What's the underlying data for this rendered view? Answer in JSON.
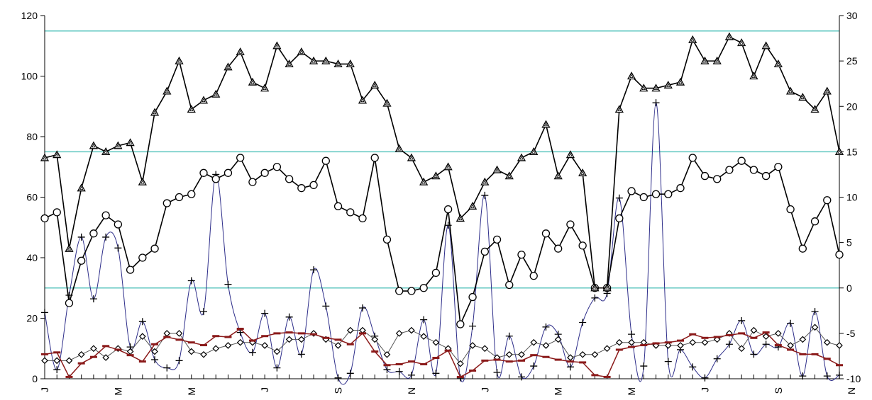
{
  "chart_data": {
    "type": "line",
    "title": "",
    "xlabel": "",
    "ylabel": "",
    "n_points": 66,
    "x_tick_labels": [
      "J",
      "M",
      "M",
      "J",
      "S",
      "N",
      "J",
      "M",
      "M",
      "J",
      "S",
      "N"
    ],
    "left_axis": {
      "min": 0,
      "max": 120,
      "ticks": [
        0,
        20,
        40,
        60,
        80,
        100,
        120
      ]
    },
    "right_axis": {
      "min": -10,
      "max": 30,
      "ticks": [
        -10,
        -5,
        0,
        5,
        10,
        15,
        20,
        25,
        30
      ]
    },
    "reference_lines_right": [
      0,
      15,
      28.3
    ],
    "colors": {
      "reference": "#5fc7c0",
      "black": "#000000",
      "navy": "#2e2e8a",
      "maroon": "#8b1a1a"
    },
    "series": [
      {
        "axis": "left",
        "marker": "triangle",
        "color": "#000000",
        "values": [
          73,
          74,
          43,
          63,
          77,
          75,
          77,
          78,
          65,
          88,
          95,
          105,
          89,
          92,
          94,
          103,
          108,
          98,
          96,
          110,
          104,
          108,
          105,
          105,
          104,
          104,
          92,
          97,
          91,
          76,
          73,
          65,
          67,
          70,
          53,
          57,
          65,
          69,
          67,
          73,
          75,
          84,
          67,
          74,
          68,
          30,
          30,
          89,
          100,
          96,
          96,
          97,
          98,
          112,
          105,
          105,
          113,
          111,
          100,
          110,
          104,
          95,
          93,
          89,
          95,
          75
        ]
      },
      {
        "axis": "left",
        "marker": "circle",
        "color": "#000000",
        "values": [
          53,
          55,
          25,
          39,
          48,
          54,
          51,
          36,
          40,
          43,
          58,
          60,
          61,
          68,
          66,
          68,
          73,
          65,
          68,
          70,
          66,
          63,
          64,
          72,
          57,
          55,
          53,
          73,
          46,
          29,
          29,
          30,
          35,
          56,
          18,
          27,
          42,
          46,
          31,
          41,
          34,
          48,
          43,
          51,
          44,
          30,
          30,
          53,
          62,
          60,
          61,
          61,
          63,
          73,
          67,
          66,
          69,
          72,
          69,
          67,
          70,
          56,
          43,
          52,
          59,
          41
        ]
      },
      {
        "axis": "left",
        "marker": "diamond",
        "color": "#000000",
        "values": [
          6,
          6,
          6,
          8,
          10,
          7,
          10,
          9,
          14,
          9,
          15,
          15,
          9,
          8,
          10,
          11,
          12,
          12,
          11,
          9,
          13,
          13,
          15,
          13,
          11,
          16,
          16,
          13,
          8,
          15,
          16,
          14,
          12,
          10,
          5,
          11,
          10,
          7,
          8,
          8,
          12,
          11,
          13,
          7,
          8,
          8,
          10,
          12,
          12,
          12,
          11,
          11,
          11,
          12,
          12,
          13,
          15,
          10,
          16,
          14,
          15,
          11,
          13,
          17,
          12,
          11
        ]
      },
      {
        "axis": "right",
        "marker": "plus",
        "color": "#2e2e8a",
        "values": [
          -2.7,
          -9,
          -0.8,
          5.6,
          -1.2,
          5.6,
          4.4,
          -6.5,
          -3.7,
          -7.9,
          -8.8,
          -8,
          0.8,
          -2.6,
          12.5,
          0.4,
          -4.9,
          -7.1,
          -2.8,
          -8.8,
          -3.2,
          -7.3,
          2,
          -2,
          -9.9,
          -9.4,
          -2.2,
          -5.3,
          -9,
          -9.2,
          -9.6,
          -3.5,
          -9.4,
          6.9,
          -9.9,
          -4.2,
          10.2,
          -9.3,
          -5.3,
          -9.8,
          -8.6,
          -4.3,
          -5.1,
          -8.7,
          -3.8,
          -1.1,
          -0.6,
          9.9,
          -5.1,
          -8.6,
          20.4,
          -8.1,
          -6.8,
          -8.7,
          -9.9,
          -7.8,
          -6.2,
          -3.6,
          -7.3,
          -6.2,
          -6.5,
          -3.9,
          -9.7,
          -2.6,
          -9.7,
          -9.6
        ]
      },
      {
        "axis": "right",
        "marker": "dash",
        "color": "#8b1a1a",
        "values": [
          -7.3,
          -7.1,
          -9.8,
          -8.3,
          -7.6,
          -6.4,
          -6.8,
          -7.4,
          -8.1,
          -6.2,
          -5.4,
          -5.7,
          -6,
          -6.3,
          -5.3,
          -5.4,
          -4.5,
          -5.8,
          -5.3,
          -5,
          -4.9,
          -5,
          -5.1,
          -5.5,
          -5.7,
          -6.2,
          -5,
          -7,
          -8.5,
          -8.4,
          -8.1,
          -8.4,
          -7.7,
          -6.9,
          -9.8,
          -9.1,
          -8,
          -7.9,
          -8.1,
          -8,
          -7.4,
          -7.6,
          -7.9,
          -8.1,
          -8.2,
          -9.6,
          -9.8,
          -6.8,
          -6.5,
          -6.3,
          -6.1,
          -6,
          -5.8,
          -5.1,
          -5.5,
          -5.4,
          -5.2,
          -5,
          -5.5,
          -4.9,
          -6.3,
          -6.8,
          -7.3,
          -7.3,
          -7.8,
          -8.5
        ]
      }
    ]
  }
}
